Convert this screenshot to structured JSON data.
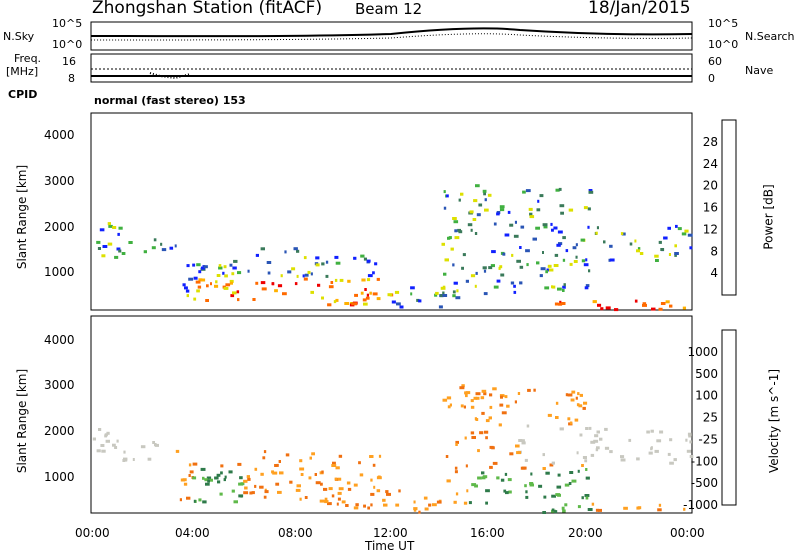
{
  "header": {
    "station": "Zhongshan Station (fitACF)",
    "beam": "Beam 12",
    "date": "18/Jan/2015"
  },
  "top_panel": {
    "left_label": "N.Sky",
    "right_label": "N.Search",
    "left_ticks": [
      "10^5",
      "10^0"
    ],
    "right_ticks": [
      "10^5",
      "10^0"
    ]
  },
  "freq_panel": {
    "left_label_line1": "Freq.",
    "left_label_line2": "[MHz]",
    "right_label": "Nave",
    "left_ticks": [
      "16",
      "8"
    ],
    "right_ticks": [
      "60",
      "0"
    ]
  },
  "cpid_panel": {
    "label": "CPID",
    "text": "normal (fast stereo) 153"
  },
  "chart_data": [
    {
      "type": "heatmap",
      "name": "power",
      "ylabel": "Slant Range [km]",
      "y_ticks": [
        "4000",
        "3000",
        "2000",
        "1000"
      ],
      "colorbar_label": "Power [dB]",
      "colorbar_ticks": [
        "28",
        "24",
        "20",
        "16",
        "12",
        "8",
        "4"
      ],
      "colors": [
        "#ee0000",
        "#ff6a00",
        "#ffb000",
        "#dde000",
        "#40b040",
        "#3a7a5a",
        "#2a55b5",
        "#1020ff"
      ],
      "ylim": [
        180,
        4600
      ],
      "xlim": [
        0,
        24
      ]
    },
    {
      "type": "heatmap",
      "name": "velocity",
      "ylabel": "Slant Range [km]",
      "y_ticks": [
        "4000",
        "3000",
        "2000",
        "1000"
      ],
      "colorbar_label": "Velocity [m s^-1]",
      "colorbar_ticks": [
        "1000",
        "500",
        "100",
        "25",
        "-25",
        "-100",
        "-500",
        "-1000"
      ],
      "colors": [
        "#1a3a9a",
        "#2a5aa8",
        "#2e7a4a",
        "#5fb94a",
        "#c8c8c0",
        "#ffa020",
        "#f07010",
        "#e02020"
      ],
      "ylim": [
        180,
        4600
      ],
      "xlim": [
        0,
        24
      ]
    }
  ],
  "x_axis": {
    "ticks": [
      "00:00",
      "04:00",
      "08:00",
      "12:00",
      "16:00",
      "20:00",
      "00:00"
    ],
    "label": "Time UT"
  }
}
